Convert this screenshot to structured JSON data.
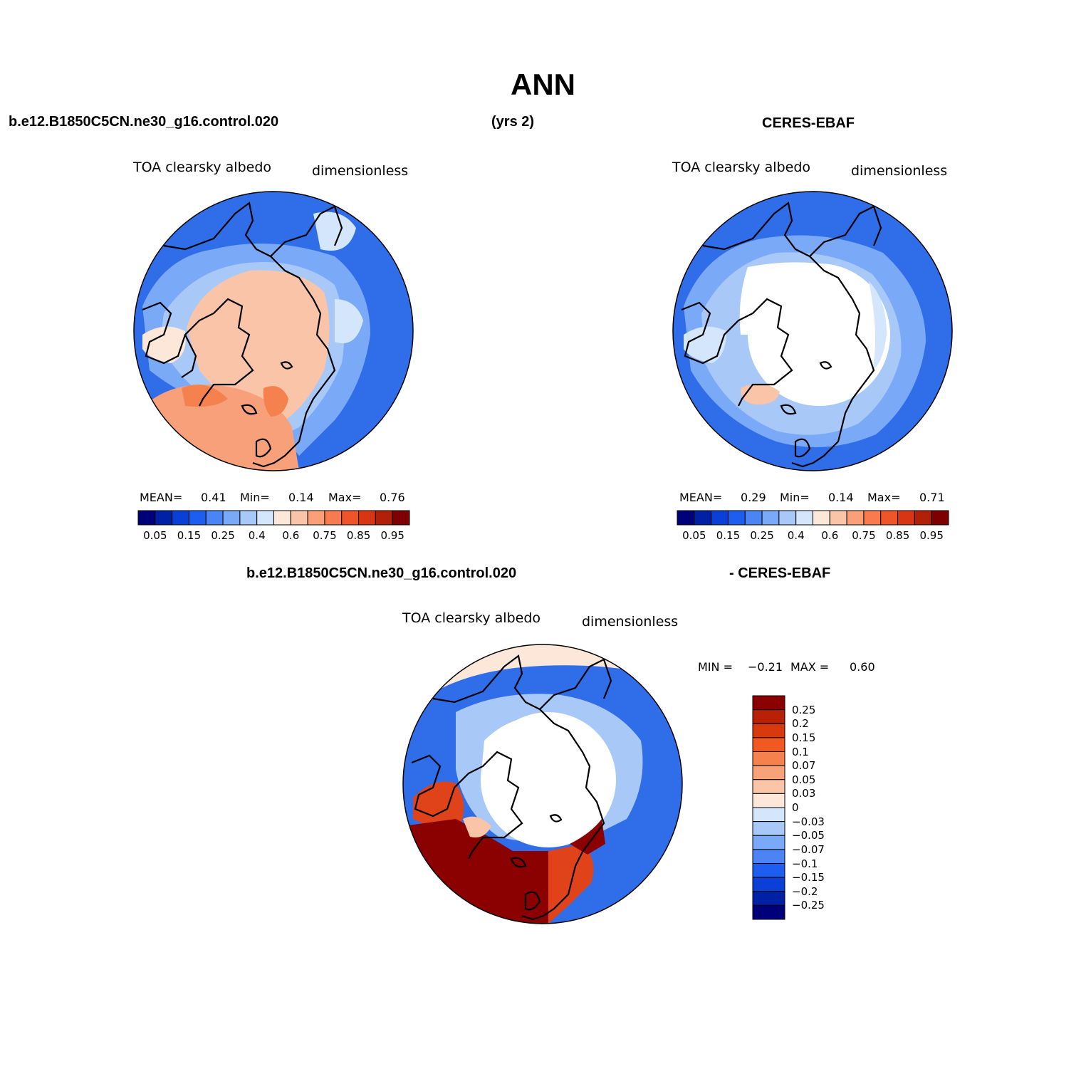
{
  "title": "ANN",
  "header": {
    "case_name": "b.e12.B1850C5CN.ne30_g16.control.020",
    "years": "(yrs 2)",
    "obs_name": "CERES-EBAF"
  },
  "diff_header": {
    "case_name": "b.e12.B1850C5CN.ne30_g16.control.020",
    "obs_name": "- CERES-EBAF"
  },
  "panels": [
    {
      "variable": "TOA clearsky albedo",
      "units": "dimensionless",
      "stats": {
        "mean_label": "MEAN=",
        "mean": "0.41",
        "min_label": "Min=",
        "min": "0.14",
        "max_label": "Max=",
        "max": "0.76"
      }
    },
    {
      "variable": "TOA clearsky albedo",
      "units": "dimensionless",
      "stats": {
        "mean_label": "MEAN=",
        "mean": "0.29",
        "min_label": "Min=",
        "min": "0.14",
        "max_label": "Max=",
        "max": "0.71"
      }
    },
    {
      "variable": "TOA clearsky albedo",
      "units": "dimensionless",
      "stats": {
        "min_label": "MIN =",
        "min": "−0.21",
        "max_label": "MAX =",
        "max": "0.60"
      }
    }
  ],
  "colorbar_abs": {
    "colors": [
      "#00007a",
      "#0020a6",
      "#0a3fd8",
      "#1d5ef0",
      "#4b84f5",
      "#7aa9f7",
      "#a8c8f8",
      "#d3e6fb",
      "#fde7d8",
      "#f9c4a8",
      "#f9a079",
      "#f87b4f",
      "#f0552a",
      "#d73514",
      "#b3200a",
      "#7f0000"
    ],
    "labels": [
      "0.05",
      "0.15",
      "0.25",
      "0.4",
      "0.6",
      "0.75",
      "0.85",
      "0.95"
    ]
  },
  "colorbar_diff": {
    "colors": [
      "#8b0000",
      "#b82105",
      "#d83a0e",
      "#f05a22",
      "#f5824e",
      "#f8a27a",
      "#fbc6a8",
      "#fde7d8",
      "#d3e6fb",
      "#a8c8f8",
      "#7aa9f7",
      "#4b84f5",
      "#1d5ef0",
      "#0a3fd8",
      "#0020a6",
      "#00007a"
    ],
    "labels": [
      "0.25",
      "0.2",
      "0.15",
      "0.1",
      "0.07",
      "0.05",
      "0.03",
      "0",
      "−0.03",
      "−0.05",
      "−0.07",
      "−0.1",
      "−0.15",
      "−0.2",
      "−0.25"
    ]
  },
  "map_fills": {
    "ocean_blue": "#2f6ee8",
    "ocean_mid": "#4b84f5",
    "ocean_light": "#a8c8f8",
    "ice_pale": "#fde7d8",
    "ice_salmon": "#f9b898",
    "ice_orange": "#f8a07a",
    "white": "#ffffff",
    "deep_red": "#8b0000",
    "orange_red": "#e0431a"
  }
}
